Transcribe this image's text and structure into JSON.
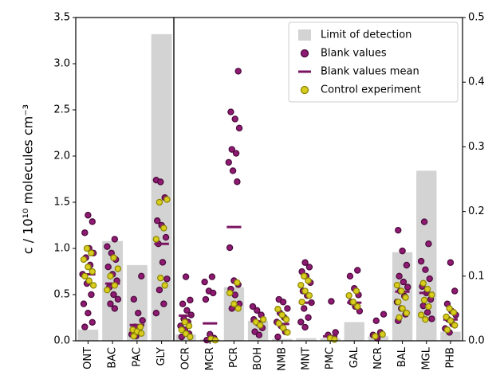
{
  "chart_data": [
    {
      "type": "strip",
      "yaxis_side": "left",
      "ylabel": "c / 10¹⁰ molecules cm⁻³",
      "categories": [
        "ONT",
        "BAC",
        "PAC",
        "GLY"
      ],
      "ylim": [
        0,
        3.5
      ],
      "yticks": [
        {
          "value": 0,
          "label": "0.0"
        },
        0.5,
        {
          "value": 1,
          "label": "1.0"
        },
        1.5,
        {
          "value": 2,
          "label": "2.0"
        },
        2.5,
        {
          "value": 3,
          "label": "3.0"
        },
        3.5
      ],
      "series": [
        {
          "marker": "bar",
          "color": "#d3d3d3",
          "values": [
            0.12,
            1.08,
            0.82,
            3.32
          ]
        },
        {
          "marker": "dot",
          "color": "#8e1a72",
          "values": [
            [
              1.36,
              1.29,
              1.17,
              1.0,
              0.95,
              0.9,
              0.82,
              0.72,
              0.62,
              0.5,
              0.4,
              0.3,
              0.2,
              0.15
            ],
            [
              1.1,
              1.02,
              0.95,
              0.88,
              0.8,
              0.72,
              0.65,
              0.58,
              0.5,
              0.45,
              0.4,
              0.35
            ],
            [
              0.7,
              0.45,
              0.3,
              0.22,
              0.15,
              0.1,
              0.07,
              0.05
            ],
            [
              1.74,
              1.72,
              1.55,
              1.3,
              1.25,
              1.12,
              1.05,
              0.85,
              0.67,
              0.55,
              0.4,
              0.3
            ]
          ]
        },
        {
          "marker": "dash",
          "color": "#7a1460",
          "values": [
            0.72,
            0.62,
            0.17,
            1.05
          ]
        },
        {
          "marker": "dot",
          "color": "#d8cc1e",
          "values": [
            [
              1.0,
              0.95,
              0.88,
              0.8,
              0.75,
              0.7,
              0.65,
              0.6
            ],
            [
              0.9,
              0.78,
              0.7,
              0.6,
              0.55
            ],
            [
              0.15,
              0.12,
              0.1,
              0.08,
              0.05
            ],
            [
              1.53,
              1.5,
              1.22,
              1.1,
              0.68,
              0.6
            ]
          ]
        }
      ]
    },
    {
      "type": "strip",
      "yaxis_side": "right",
      "legend": "upper right",
      "categories": [
        "OCR",
        "MCR",
        "PCR",
        "BOH",
        "NMB",
        "MNT",
        "PMC",
        "GAL",
        "NCR",
        "BAL",
        "MGL",
        "PHB"
      ],
      "ylim": [
        0,
        0.5
      ],
      "yticks": [
        {
          "value": 0,
          "label": "0.0"
        },
        0.1,
        0.2,
        0.3,
        0.4,
        0.5
      ],
      "series": [
        {
          "name": "Limit of detection",
          "marker": "bar",
          "color": "#d3d3d3",
          "values": [
            0.01,
            0.002,
            0.083,
            0.031,
            0.003,
            0.004,
            0.004,
            0.029,
            0.007,
            0.137,
            0.263,
            0.014
          ]
        },
        {
          "name": "Blank values",
          "marker": "dot",
          "color": "#8e1a72",
          "values": [
            [
              0.099,
              0.063,
              0.057,
              0.047,
              0.04,
              0.034,
              0.029,
              0.023,
              0.017,
              0.011,
              0.006
            ],
            [
              0.099,
              0.091,
              0.077,
              0.074,
              0.064,
              0.01,
              0.004,
              0.001
            ],
            [
              0.417,
              0.354,
              0.343,
              0.329,
              0.296,
              0.29,
              0.276,
              0.263,
              0.246,
              0.144,
              0.093,
              0.087,
              0.08,
              0.071,
              0.057,
              0.05
            ],
            [
              0.053,
              0.047,
              0.04,
              0.033,
              0.027,
              0.02,
              0.014,
              0.009
            ],
            [
              0.064,
              0.06,
              0.05,
              0.043,
              0.036,
              0.029,
              0.023,
              0.014,
              0.006
            ],
            [
              0.121,
              0.114,
              0.107,
              0.1,
              0.09,
              0.077,
              0.07,
              0.059,
              0.05,
              0.036,
              0.029,
              0.021
            ],
            [
              0.061,
              0.013,
              0.009,
              0.004
            ],
            [
              0.109,
              0.1,
              0.081,
              0.071,
              0.06,
              0.053,
              0.046
            ],
            [
              0.041,
              0.031,
              0.013,
              0.009,
              0.004
            ],
            [
              0.171,
              0.139,
              0.117,
              0.1,
              0.091,
              0.083,
              0.077,
              0.069,
              0.06,
              0.05,
              0.041,
              0.031
            ],
            [
              0.184,
              0.15,
              0.123,
              0.11,
              0.096,
              0.084,
              0.074,
              0.064,
              0.054,
              0.044,
              0.034
            ],
            [
              0.121,
              0.077,
              0.057,
              0.046,
              0.04,
              0.033,
              0.026,
              0.019,
              0.013
            ]
          ]
        },
        {
          "name": "Blank values mean",
          "marker": "dash",
          "color": "#7a1460",
          "values": [
            0.039,
            0.027,
            0.176,
            0.03,
            0.026,
            0.059,
            0.007,
            0.059,
            0.009,
            0.076,
            0.074,
            0.033
          ]
        },
        {
          "name": "Control experiment",
          "marker": "dot",
          "color": "#d8cc1e",
          "values": [
            [
              0.029,
              0.023,
              0.017,
              0.011,
              0.006
            ],
            [
              0.003,
              0.001
            ],
            [
              0.09,
              0.074,
              0.057,
              0.05
            ],
            [
              0.033,
              0.029,
              0.024
            ],
            [
              0.049,
              0.04,
              0.033,
              0.027,
              0.02,
              0.013
            ],
            [
              0.1,
              0.093,
              0.086,
              0.077,
              0.07,
              0.06
            ],
            [
              0.004,
              0.002
            ],
            [
              0.077,
              0.07,
              0.06,
              0.053
            ],
            [
              0.01,
              0.007
            ],
            [
              0.086,
              0.077,
              0.067,
              0.06,
              0.05,
              0.043,
              0.036
            ],
            [
              0.089,
              0.08,
              0.071,
              0.063,
              0.053,
              0.04,
              0.033
            ],
            [
              0.05,
              0.044,
              0.037,
              0.031,
              0.024,
              0.017
            ]
          ]
        }
      ]
    }
  ]
}
